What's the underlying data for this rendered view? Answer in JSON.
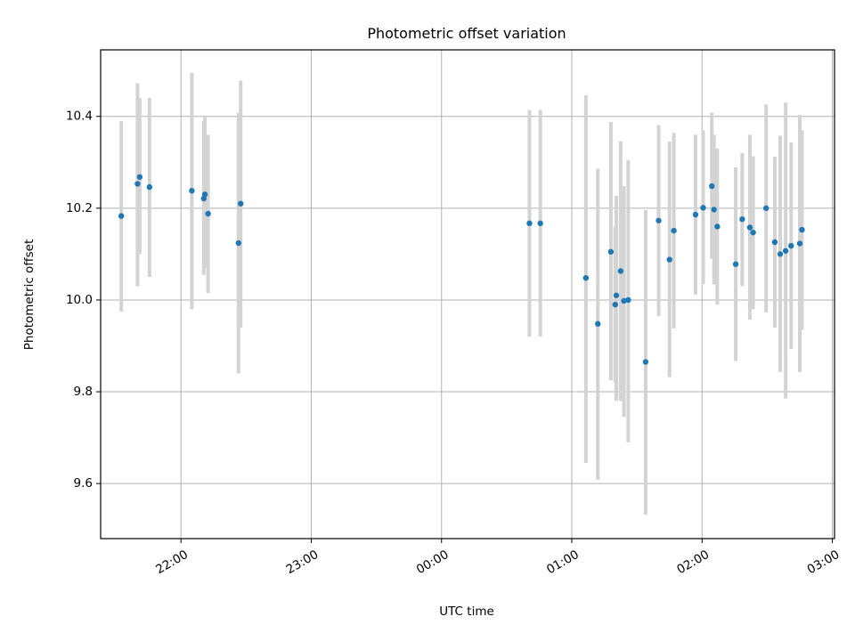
{
  "chart_data": {
    "type": "scatter",
    "title": "Photometric offset variation",
    "xlabel": "UTC time",
    "ylabel": "Photometric offset",
    "x_axis": {
      "kind": "time",
      "range": [
        "21:23",
        "03:01"
      ],
      "ticks": [
        "22:00",
        "23:00",
        "00:00",
        "01:00",
        "02:00",
        "03:00"
      ]
    },
    "y_axis": {
      "range": [
        9.48,
        10.545
      ],
      "ticks": [
        "9.6",
        "9.8",
        "10.0",
        "10.2",
        "10.4"
      ]
    },
    "grid": true,
    "series": [
      {
        "color": "#1f77b4",
        "errorbar_color": "#d3d3d3",
        "points": [
          {
            "time": "21:32:30",
            "y": 10.183,
            "ylow": 9.975,
            "yhigh": 10.39
          },
          {
            "time": "21:40:00",
            "y": 10.253,
            "ylow": 10.03,
            "yhigh": 10.472
          },
          {
            "time": "21:41:00",
            "y": 10.268,
            "ylow": 10.1,
            "yhigh": 10.44
          },
          {
            "time": "21:45:30",
            "y": 10.246,
            "ylow": 10.05,
            "yhigh": 10.44
          },
          {
            "time": "22:05:00",
            "y": 10.238,
            "ylow": 9.98,
            "yhigh": 10.495
          },
          {
            "time": "22:10:30",
            "y": 10.221,
            "ylow": 10.055,
            "yhigh": 10.39
          },
          {
            "time": "22:11:00",
            "y": 10.23,
            "ylow": 10.07,
            "yhigh": 10.4
          },
          {
            "time": "22:12:30",
            "y": 10.188,
            "ylow": 10.015,
            "yhigh": 10.36
          },
          {
            "time": "22:26:30",
            "y": 10.124,
            "ylow": 9.84,
            "yhigh": 10.408
          },
          {
            "time": "22:27:30",
            "y": 10.21,
            "ylow": 9.94,
            "yhigh": 10.478
          },
          {
            "time": "00:40:30",
            "y": 10.167,
            "ylow": 9.92,
            "yhigh": 10.414
          },
          {
            "time": "00:45:30",
            "y": 10.167,
            "ylow": 9.92,
            "yhigh": 10.414
          },
          {
            "time": "01:06:30",
            "y": 10.048,
            "ylow": 9.645,
            "yhigh": 10.446
          },
          {
            "time": "01:12:00",
            "y": 9.948,
            "ylow": 9.608,
            "yhigh": 10.286
          },
          {
            "time": "01:18:00",
            "y": 10.105,
            "ylow": 9.825,
            "yhigh": 10.388
          },
          {
            "time": "01:20:00",
            "y": 9.99,
            "ylow": 9.82,
            "yhigh": 10.16
          },
          {
            "time": "01:20:30",
            "y": 10.01,
            "ylow": 9.78,
            "yhigh": 10.227
          },
          {
            "time": "01:22:30",
            "y": 10.063,
            "ylow": 9.78,
            "yhigh": 10.346
          },
          {
            "time": "01:24:00",
            "y": 9.998,
            "ylow": 9.745,
            "yhigh": 10.248
          },
          {
            "time": "01:26:00",
            "y": 10.0,
            "ylow": 9.69,
            "yhigh": 10.305
          },
          {
            "time": "01:34:00",
            "y": 9.865,
            "ylow": 9.532,
            "yhigh": 10.196
          },
          {
            "time": "01:40:00",
            "y": 10.173,
            "ylow": 9.965,
            "yhigh": 10.381
          },
          {
            "time": "01:45:00",
            "y": 10.088,
            "ylow": 9.832,
            "yhigh": 10.345
          },
          {
            "time": "01:47:00",
            "y": 10.151,
            "ylow": 9.938,
            "yhigh": 10.364
          },
          {
            "time": "01:57:00",
            "y": 10.186,
            "ylow": 10.012,
            "yhigh": 10.36
          },
          {
            "time": "02:00:30",
            "y": 10.201,
            "ylow": 10.035,
            "yhigh": 10.37
          },
          {
            "time": "02:04:30",
            "y": 10.248,
            "ylow": 10.09,
            "yhigh": 10.408
          },
          {
            "time": "02:05:30",
            "y": 10.197,
            "ylow": 10.034,
            "yhigh": 10.36
          },
          {
            "time": "02:07:00",
            "y": 10.16,
            "ylow": 9.99,
            "yhigh": 10.33
          },
          {
            "time": "02:15:30",
            "y": 10.078,
            "ylow": 9.867,
            "yhigh": 10.289
          },
          {
            "time": "02:18:30",
            "y": 10.176,
            "ylow": 10.03,
            "yhigh": 10.32
          },
          {
            "time": "02:22:00",
            "y": 10.158,
            "ylow": 9.957,
            "yhigh": 10.36
          },
          {
            "time": "02:23:30",
            "y": 10.147,
            "ylow": 9.98,
            "yhigh": 10.313
          },
          {
            "time": "02:29:30",
            "y": 10.2,
            "ylow": 9.973,
            "yhigh": 10.426
          },
          {
            "time": "02:33:30",
            "y": 10.126,
            "ylow": 9.94,
            "yhigh": 10.312
          },
          {
            "time": "02:36:00",
            "y": 10.1,
            "ylow": 9.843,
            "yhigh": 10.358
          },
          {
            "time": "02:38:30",
            "y": 10.107,
            "ylow": 9.785,
            "yhigh": 10.43
          },
          {
            "time": "02:41:00",
            "y": 10.118,
            "ylow": 9.893,
            "yhigh": 10.343
          },
          {
            "time": "02:45:00",
            "y": 10.123,
            "ylow": 9.843,
            "yhigh": 10.403
          },
          {
            "time": "02:46:00",
            "y": 10.153,
            "ylow": 9.935,
            "yhigh": 10.37
          }
        ]
      }
    ]
  }
}
